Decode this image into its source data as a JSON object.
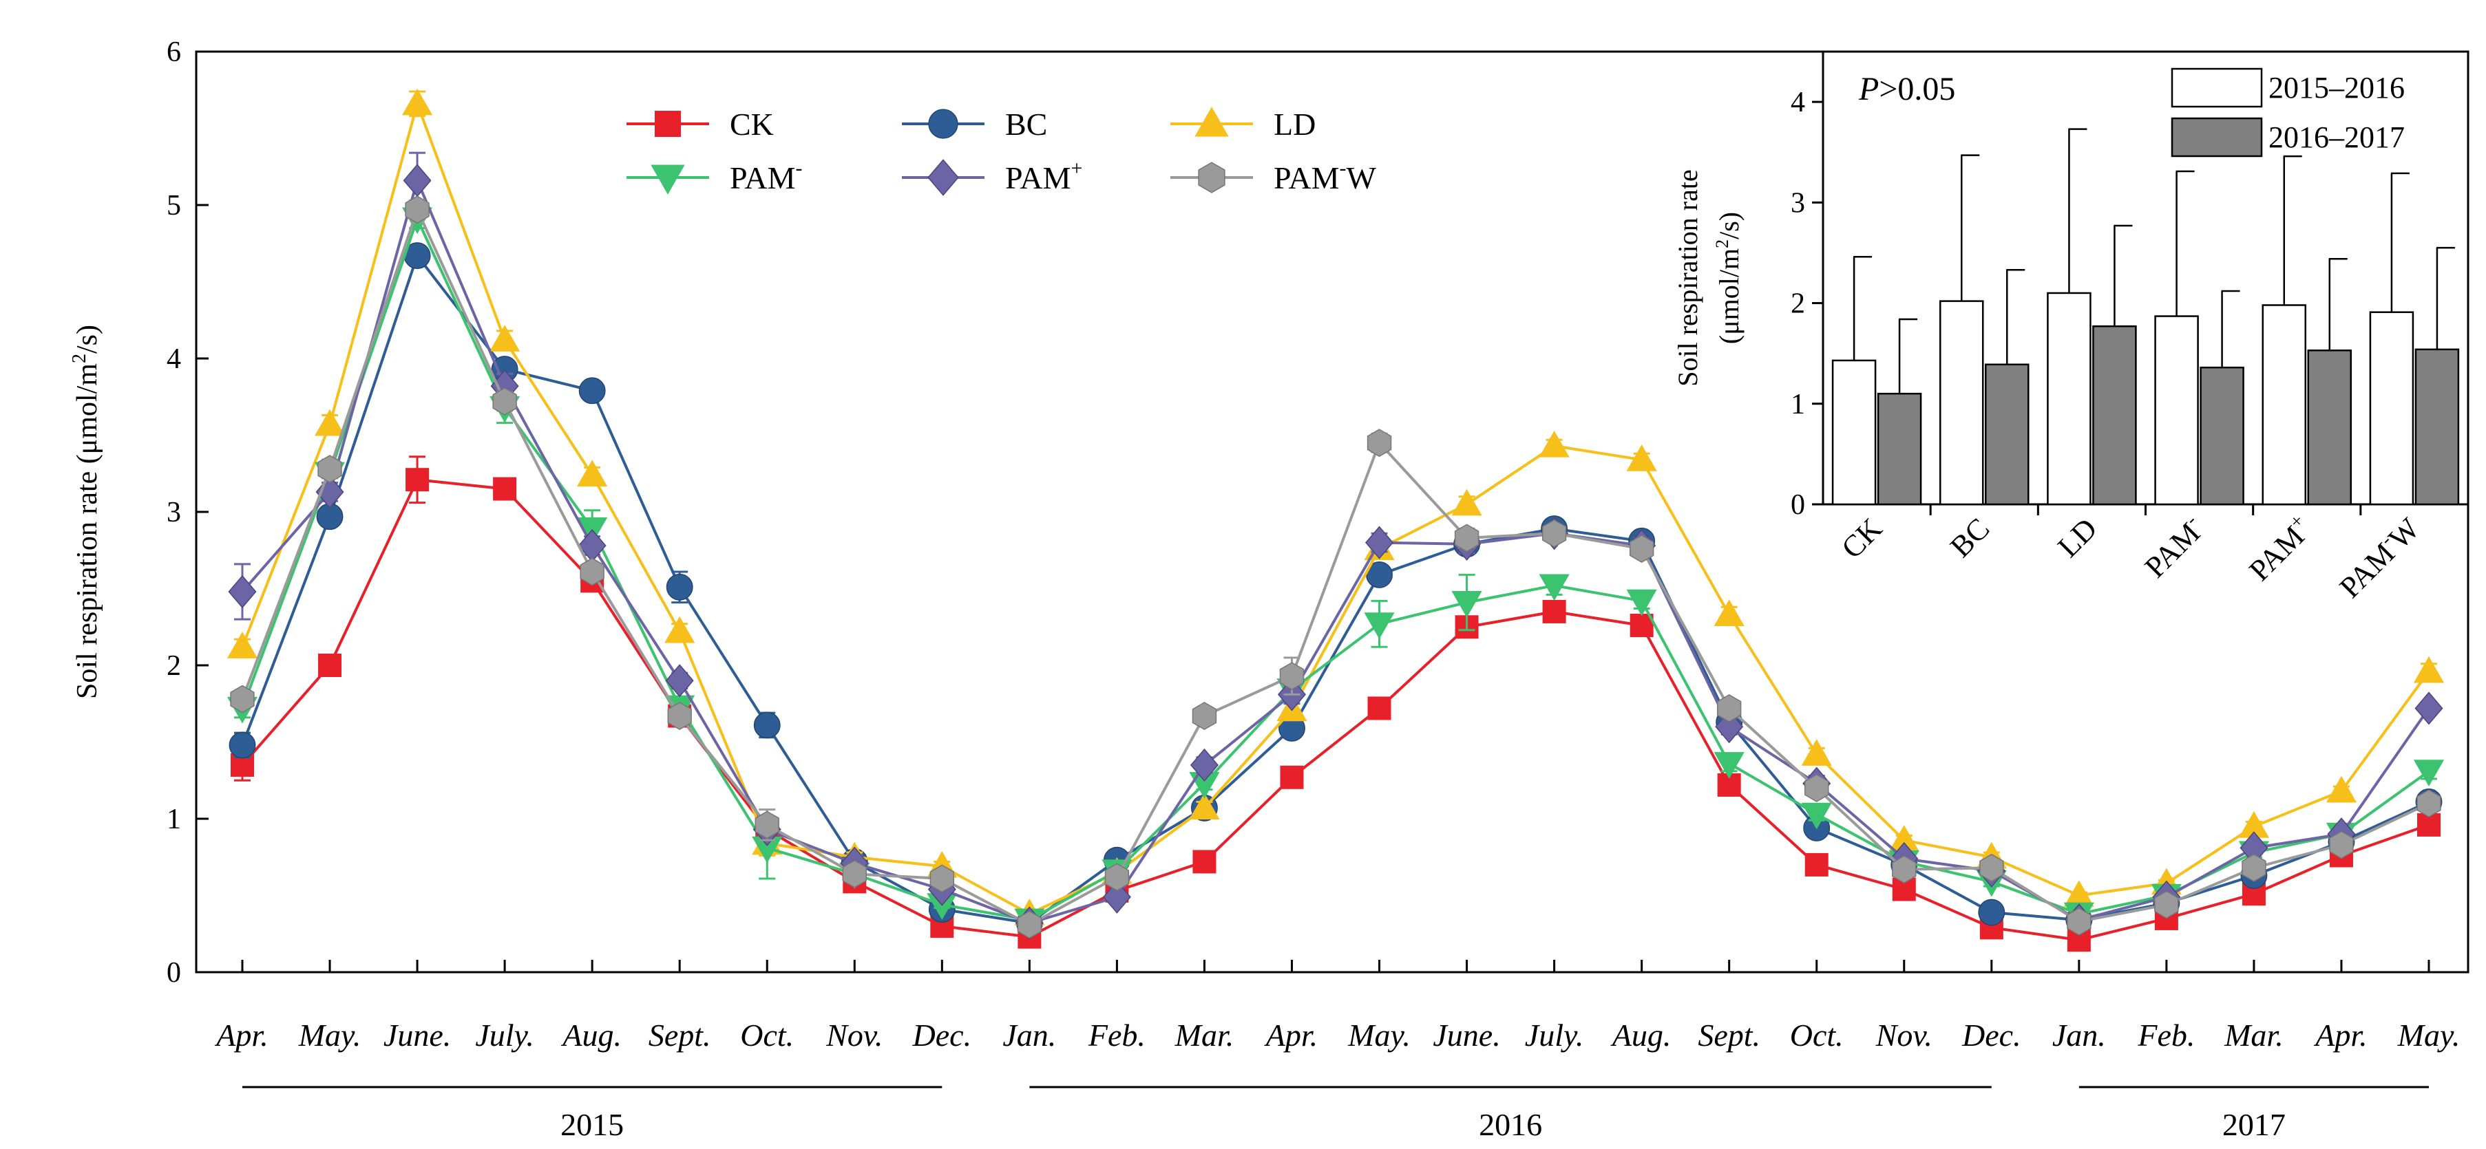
{
  "chart_data": [
    {
      "type": "line",
      "ylabel": "Soil respiration rate (μmol/m²/s)",
      "ylabel_parts": [
        "Soil respiration rate (μmol/m",
        "2",
        "/s)"
      ],
      "ylim": [
        0,
        6
      ],
      "yticks": [
        "0",
        "1",
        "2",
        "3",
        "4",
        "5",
        "6"
      ],
      "categories": [
        "Apr.",
        "May.",
        "June.",
        "July.",
        "Aug.",
        "Sept.",
        "Oct.",
        "Nov.",
        "Dec.",
        "Jan.",
        "Feb.",
        "Mar.",
        "Apr.",
        "May.",
        "June.",
        "July.",
        "Aug.",
        "Sept.",
        "Oct.",
        "Nov.",
        "Dec.",
        "Jan.",
        "Feb.",
        "Mar.",
        "Apr.",
        "May."
      ],
      "years": [
        {
          "label": "2015",
          "from": 0,
          "to": 8
        },
        {
          "label": "2016",
          "from": 9,
          "to": 20
        },
        {
          "label": "2017",
          "from": 21,
          "to": 25
        }
      ],
      "series": [
        {
          "name": "CK",
          "sup": "",
          "color": "#e8202a",
          "marker": "square",
          "values": [
            1.35,
            2.0,
            3.21,
            3.15,
            2.55,
            1.67,
            0.93,
            0.59,
            0.3,
            0.23,
            0.53,
            0.72,
            1.27,
            1.72,
            2.25,
            2.35,
            2.26,
            1.22,
            0.7,
            0.54,
            0.29,
            0.21,
            0.35,
            0.51,
            0.76,
            0.96
          ],
          "errors": [
            0.1,
            0.05,
            0.15,
            0.06,
            0.05,
            0.05,
            0.04,
            0.03,
            0.02,
            0.02,
            0.03,
            0.03,
            0.04,
            0.04,
            0.06,
            0.05,
            0.05,
            0.05,
            0.03,
            0.03,
            0.02,
            0.02,
            0.02,
            0.03,
            0.03,
            0.04
          ]
        },
        {
          "name": "BC",
          "sup": "",
          "color": "#2e5d96",
          "marker": "circle",
          "values": [
            1.48,
            2.97,
            4.67,
            3.93,
            3.79,
            2.51,
            1.61,
            0.72,
            0.41,
            0.32,
            0.73,
            1.07,
            1.59,
            2.59,
            2.79,
            2.89,
            2.81,
            1.63,
            0.94,
            0.7,
            0.39,
            0.34,
            0.45,
            0.63,
            0.85,
            1.11
          ],
          "errors": [
            0.08,
            0.06,
            0.05,
            0.05,
            0.05,
            0.1,
            0.08,
            0.04,
            0.02,
            0.02,
            0.03,
            0.04,
            0.05,
            0.05,
            0.05,
            0.04,
            0.04,
            0.05,
            0.04,
            0.03,
            0.02,
            0.02,
            0.02,
            0.03,
            0.03,
            0.04
          ]
        },
        {
          "name": "LD",
          "sup": "",
          "color": "#f7bf1a",
          "marker": "triangle-up",
          "values": [
            2.12,
            3.57,
            5.66,
            4.12,
            3.24,
            2.22,
            0.84,
            0.75,
            0.69,
            0.38,
            0.65,
            1.07,
            1.71,
            2.76,
            3.05,
            3.43,
            3.34,
            2.33,
            1.42,
            0.86,
            0.75,
            0.5,
            0.58,
            0.95,
            1.18,
            1.96
          ],
          "errors": [
            0.05,
            0.06,
            0.08,
            0.06,
            0.05,
            0.05,
            0.08,
            0.03,
            0.03,
            0.02,
            0.03,
            0.04,
            0.05,
            0.05,
            0.05,
            0.04,
            0.04,
            0.05,
            0.04,
            0.03,
            0.03,
            0.02,
            0.02,
            0.03,
            0.03,
            0.05
          ]
        },
        {
          "name": "PAM",
          "sup": "-",
          "color": "#3cc36f",
          "marker": "triangle-down",
          "values": [
            1.72,
            3.25,
            4.91,
            3.68,
            2.89,
            1.73,
            0.81,
            0.64,
            0.44,
            0.34,
            0.66,
            1.23,
            1.84,
            2.27,
            2.41,
            2.52,
            2.42,
            1.36,
            1.03,
            0.72,
            0.59,
            0.38,
            0.5,
            0.78,
            0.9,
            1.31
          ],
          "errors": [
            0.06,
            0.06,
            0.06,
            0.1,
            0.12,
            0.05,
            0.2,
            0.03,
            0.02,
            0.02,
            0.03,
            0.04,
            0.05,
            0.15,
            0.18,
            0.06,
            0.05,
            0.05,
            0.04,
            0.03,
            0.03,
            0.02,
            0.02,
            0.03,
            0.03,
            0.05
          ]
        },
        {
          "name": "PAM",
          "sup": "+",
          "color": "#6b65a6",
          "marker": "diamond",
          "values": [
            2.48,
            3.13,
            5.16,
            3.82,
            2.78,
            1.9,
            0.93,
            0.71,
            0.54,
            0.32,
            0.49,
            1.35,
            1.81,
            2.8,
            2.79,
            2.86,
            2.78,
            1.6,
            1.23,
            0.74,
            0.66,
            0.34,
            0.49,
            0.81,
            0.9,
            1.72
          ],
          "errors": [
            0.18,
            0.06,
            0.18,
            0.08,
            0.06,
            0.05,
            0.04,
            0.03,
            0.03,
            0.02,
            0.03,
            0.05,
            0.06,
            0.06,
            0.06,
            0.05,
            0.05,
            0.05,
            0.05,
            0.03,
            0.03,
            0.02,
            0.02,
            0.03,
            0.03,
            0.04
          ]
        },
        {
          "name": "PAM",
          "sup": "-",
          "suffix": "W",
          "color": "#9a9a9a",
          "marker": "hexagon",
          "values": [
            1.78,
            3.28,
            4.97,
            3.72,
            2.61,
            1.67,
            0.96,
            0.64,
            0.61,
            0.31,
            0.62,
            1.67,
            1.93,
            3.45,
            2.83,
            2.86,
            2.76,
            1.72,
            1.2,
            0.67,
            0.68,
            0.33,
            0.44,
            0.68,
            0.83,
            1.1
          ],
          "errors": [
            0.05,
            0.06,
            0.06,
            0.06,
            0.05,
            0.05,
            0.1,
            0.03,
            0.03,
            0.02,
            0.03,
            0.04,
            0.12,
            0.06,
            0.06,
            0.05,
            0.05,
            0.05,
            0.04,
            0.03,
            0.03,
            0.02,
            0.02,
            0.03,
            0.03,
            0.04
          ]
        }
      ]
    },
    {
      "type": "bar",
      "annotation_italic": "P",
      "annotation_rest": ">0.05",
      "ylabel_line1": "Soil respiration rate",
      "ylabel_line2_parts": [
        "(μmol/m",
        "2",
        "/s)"
      ],
      "ylim": [
        0,
        4.5
      ],
      "yticks": [
        "0",
        "1",
        "2",
        "3",
        "4"
      ],
      "categories": [
        {
          "base": "CK",
          "sup": "",
          "suffix": ""
        },
        {
          "base": "BC",
          "sup": "",
          "suffix": ""
        },
        {
          "base": "LD",
          "sup": "",
          "suffix": ""
        },
        {
          "base": "PAM",
          "sup": "-",
          "suffix": ""
        },
        {
          "base": "PAM",
          "sup": "+",
          "suffix": ""
        },
        {
          "base": "PAM",
          "sup": "-",
          "suffix": "W"
        }
      ],
      "series": [
        {
          "name": "2015–2016",
          "color": "#ffffff",
          "values": [
            1.43,
            2.02,
            2.1,
            1.87,
            1.98,
            1.91
          ],
          "errors": [
            1.03,
            1.45,
            1.63,
            1.44,
            1.48,
            1.38
          ]
        },
        {
          "name": "2016–2017",
          "color": "#808080",
          "values": [
            1.1,
            1.39,
            1.77,
            1.36,
            1.53,
            1.54
          ],
          "errors": [
            0.74,
            0.94,
            1.0,
            0.76,
            0.91,
            1.01
          ]
        }
      ]
    }
  ]
}
